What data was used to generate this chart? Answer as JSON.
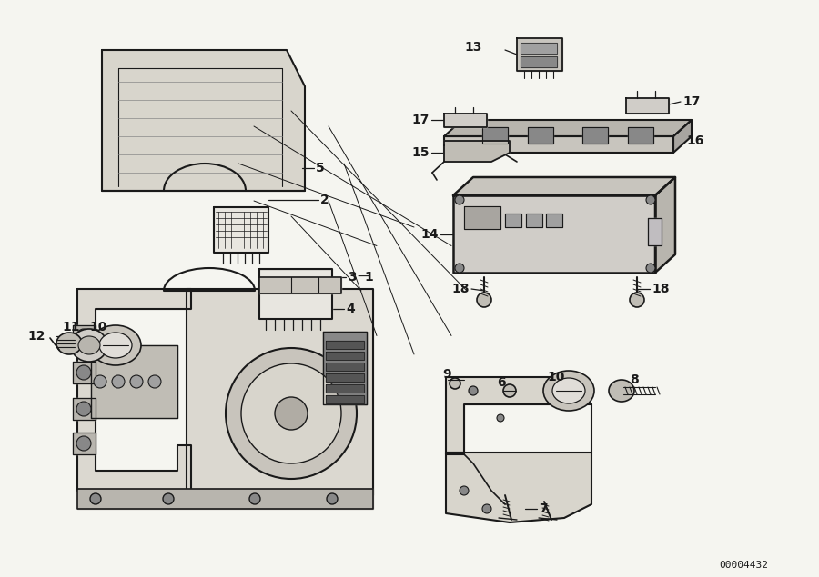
{
  "bg_color": "#f5f5f0",
  "line_color": "#1a1a1a",
  "ref_id": "00004432",
  "fig_w": 9.0,
  "fig_h": 6.35,
  "dpi": 100,
  "font_size_label": 10,
  "font_size_ref": 8
}
